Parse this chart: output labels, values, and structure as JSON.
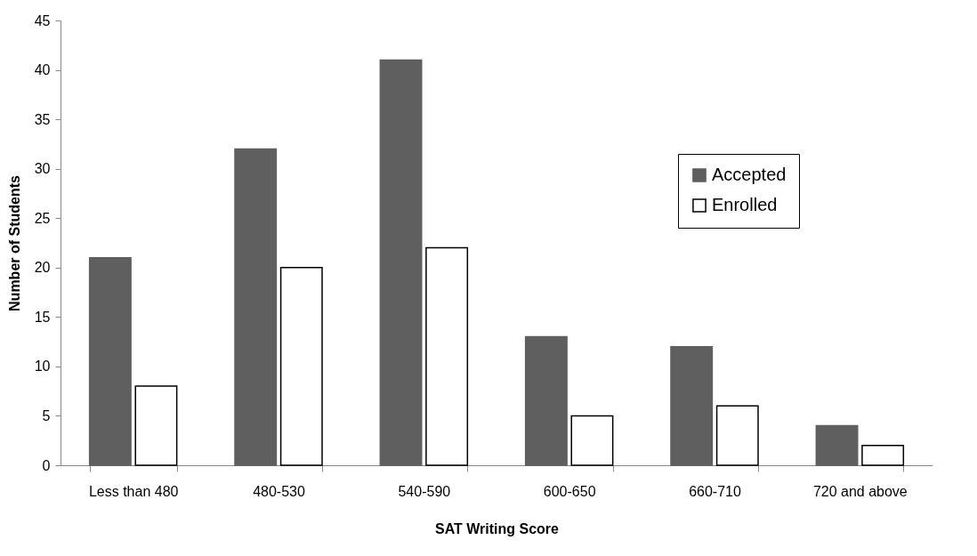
{
  "chart_data": {
    "type": "bar",
    "xlabel": "SAT Writing Score",
    "ylabel": "Number of Students",
    "categories": [
      "Less than 480",
      "480-530",
      "540-590",
      "600-650",
      "660-710",
      "720 and above"
    ],
    "series": [
      {
        "name": "Accepted",
        "color": "#5f5f5f",
        "values": [
          21,
          32,
          41,
          13,
          12,
          4
        ]
      },
      {
        "name": "Enrolled",
        "color": "#ffffff",
        "values": [
          8,
          20,
          22,
          5,
          6,
          2
        ]
      }
    ],
    "ylim": [
      0,
      45
    ],
    "yticks": [
      0,
      5,
      10,
      15,
      20,
      25,
      30,
      35,
      40,
      45
    ],
    "grid": false,
    "legend": "top right"
  }
}
